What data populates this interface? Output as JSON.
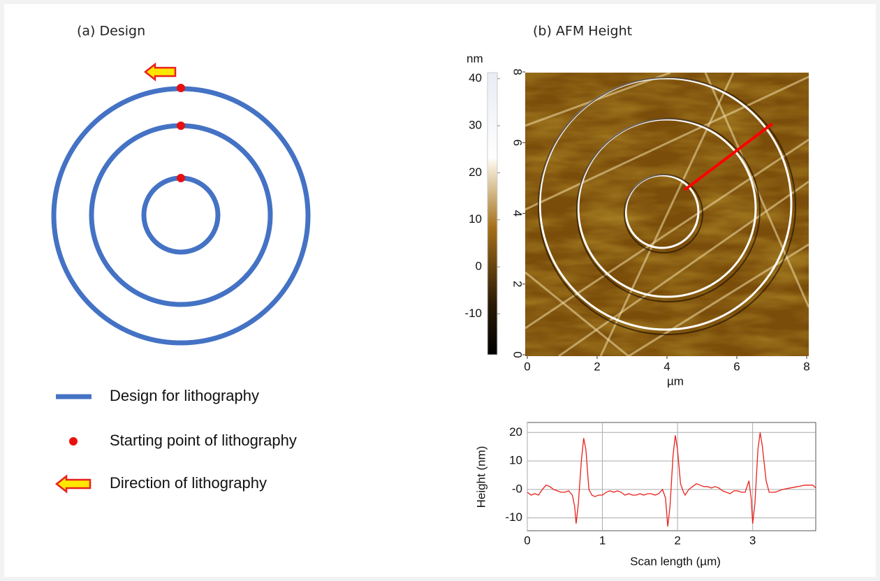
{
  "panel_a": {
    "title": "(a) Design",
    "legend": [
      "Design for lithography",
      "Starting point of lithography",
      "Direction of lithography"
    ]
  },
  "panel_b": {
    "title": "(b) AFM Height",
    "colorbar": {
      "unit": "nm",
      "lim": [
        -18.7,
        41.3
      ],
      "ticks": [
        40,
        30,
        20,
        10,
        0,
        -10
      ]
    },
    "image": {
      "xlabel": "µm",
      "xlim": [
        0,
        8
      ],
      "ylim": [
        0,
        8
      ],
      "xticks": [
        0,
        2,
        4,
        6,
        8
      ],
      "yticks": [
        0,
        2,
        4,
        6,
        8
      ]
    }
  },
  "chart_data": {
    "type": "line",
    "xlabel": "Scan length (µm)",
    "ylabel": "Height (nm)",
    "color": "#e8211c",
    "grid": true,
    "xlim": [
      0,
      3.84
    ],
    "ylim": [
      -14.5,
      23.5
    ],
    "xticks": [
      0,
      1,
      2,
      3
    ],
    "yticks": [
      20,
      10,
      {
        "value": 0,
        "label": "-0"
      },
      -10
    ],
    "x": [
      0,
      0.05,
      0.1,
      0.15,
      0.2,
      0.25,
      0.3,
      0.35,
      0.4,
      0.45,
      0.5,
      0.55,
      0.6,
      0.63,
      0.65,
      0.68,
      0.72,
      0.75,
      0.78,
      0.82,
      0.86,
      0.9,
      0.95,
      1.0,
      1.05,
      1.1,
      1.15,
      1.2,
      1.25,
      1.3,
      1.35,
      1.4,
      1.45,
      1.5,
      1.55,
      1.6,
      1.65,
      1.7,
      1.75,
      1.8,
      1.84,
      1.87,
      1.9,
      1.94,
      1.97,
      2.0,
      2.04,
      2.08,
      2.1,
      2.15,
      2.2,
      2.25,
      2.3,
      2.35,
      2.4,
      2.45,
      2.5,
      2.55,
      2.6,
      2.65,
      2.7,
      2.75,
      2.8,
      2.85,
      2.9,
      2.95,
      2.98,
      3.0,
      3.03,
      3.07,
      3.1,
      3.13,
      3.18,
      3.22,
      3.3,
      3.4,
      3.5,
      3.6,
      3.7,
      3.8,
      3.84
    ],
    "values": [
      -1,
      -2,
      -1.5,
      -2,
      0,
      1.5,
      1,
      0,
      -0.5,
      -1,
      -1,
      -0.5,
      -2,
      -6,
      -12,
      -5,
      10,
      18,
      14,
      0,
      -2,
      -2.5,
      -2,
      -2,
      -1,
      -0.5,
      -1,
      -0.5,
      -1,
      -2,
      -1.5,
      -2,
      -2,
      -1.5,
      -2,
      -1.5,
      -1.5,
      -2,
      -1.5,
      0,
      -3,
      -13,
      -6,
      12,
      19,
      14,
      2,
      -1,
      -2,
      0,
      1,
      2,
      1.5,
      1,
      1,
      0.5,
      1,
      0.5,
      -0.5,
      -1,
      -1.5,
      -0.5,
      -0.5,
      -1,
      -1,
      3,
      -3,
      -12,
      -5,
      14,
      20,
      15,
      3,
      -1,
      -1,
      0,
      0.5,
      1,
      1.5,
      1.5,
      0.5
    ]
  }
}
